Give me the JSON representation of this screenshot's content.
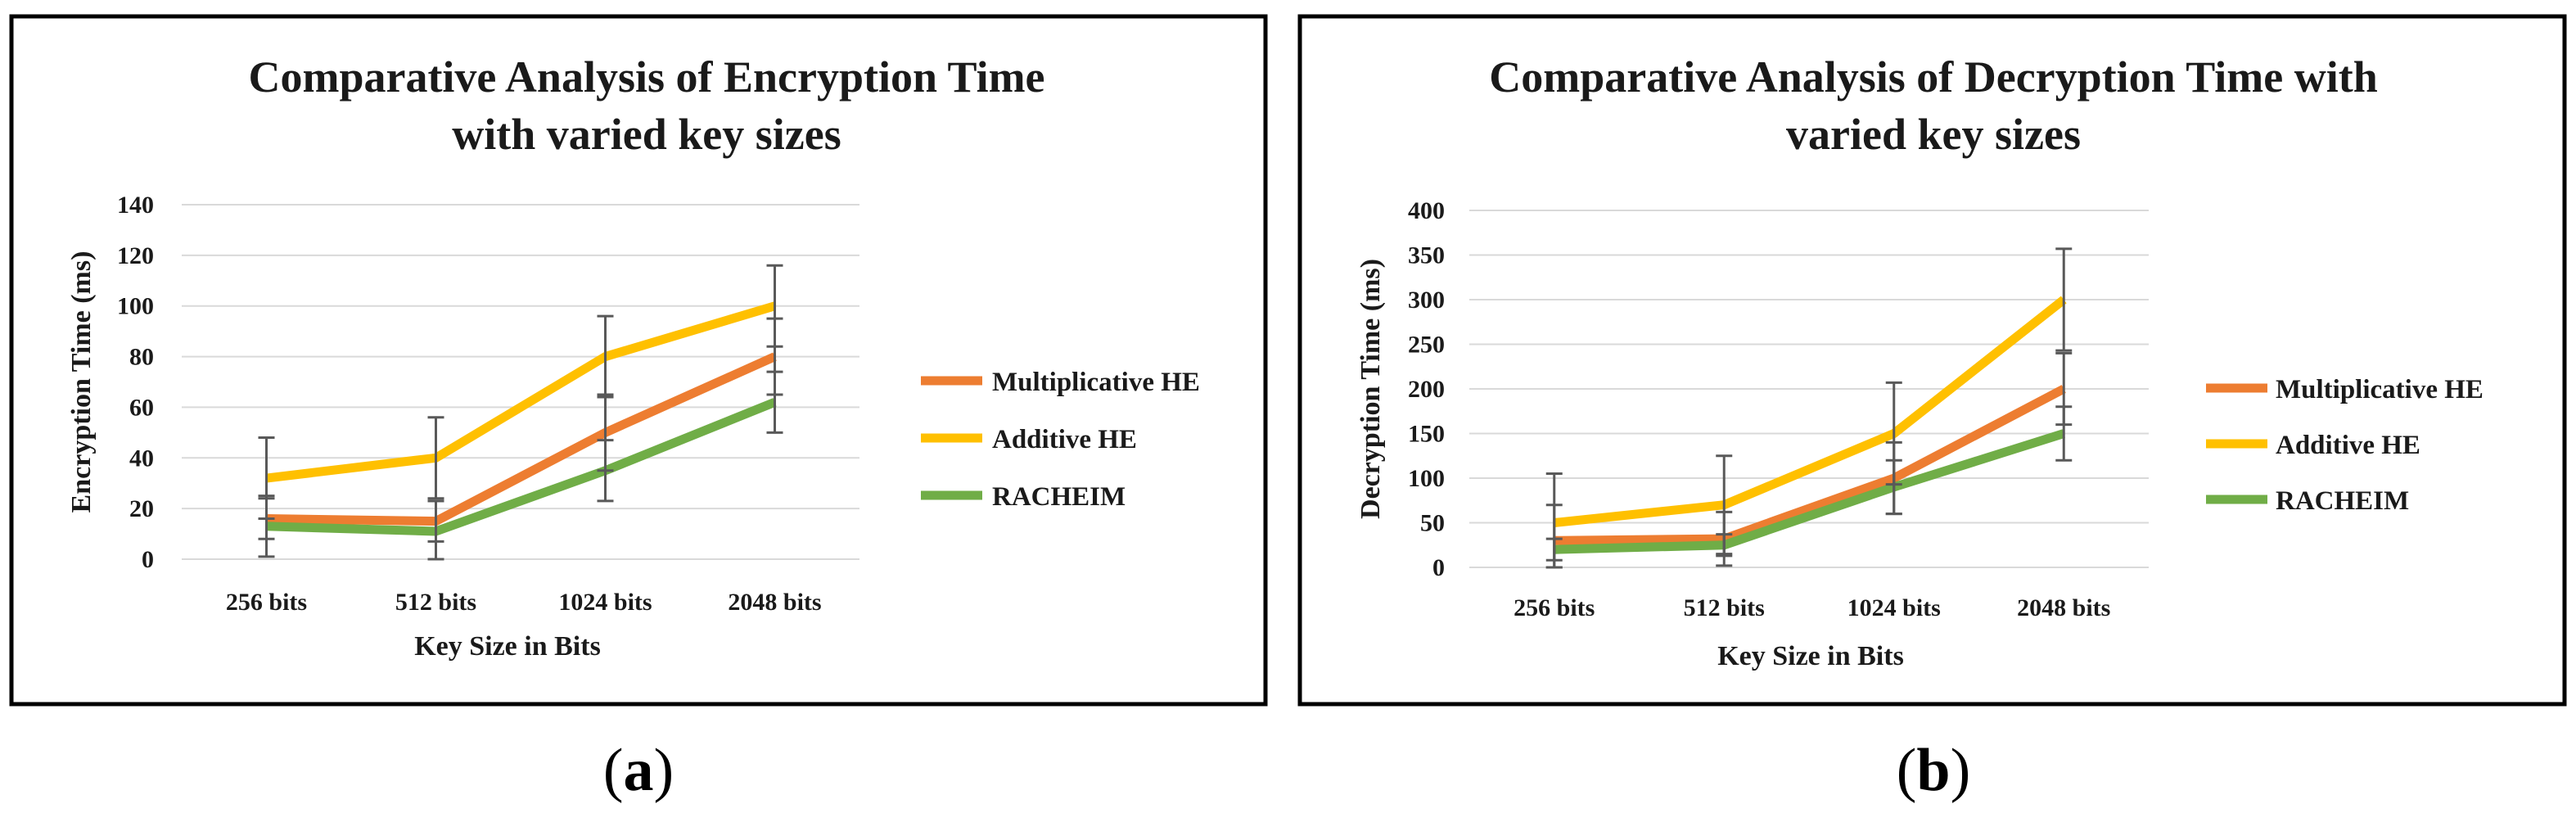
{
  "chart_data": [
    {
      "type": "line",
      "title": [
        "Comparative Analysis of Encryption Time",
        "with varied key sizes"
      ],
      "xlabel": "Key Size in Bits",
      "ylabel": "Encryption Time (ms)",
      "categories": [
        "256 bits",
        "512 bits",
        "1024 bits",
        "2048 bits"
      ],
      "ylim": [
        0,
        140
      ],
      "yticks": [
        0,
        20,
        40,
        60,
        80,
        100,
        120,
        140
      ],
      "grid": true,
      "legend_position": "right",
      "series": [
        {
          "name": "Multiplicative HE",
          "color": "#ED7D31",
          "values": [
            16,
            15,
            50,
            80
          ],
          "errors": [
            8,
            8,
            15,
            15
          ]
        },
        {
          "name": "Additive HE",
          "color": "#FFC000",
          "values": [
            32,
            40,
            80,
            100
          ],
          "errors": [
            16,
            16,
            16,
            16
          ]
        },
        {
          "name": "RACHEIM",
          "color": "#70AD47",
          "values": [
            13,
            11,
            35,
            62
          ],
          "errors": [
            12,
            12,
            12,
            12
          ]
        }
      ],
      "panel_label": [
        "(",
        "a",
        ")"
      ]
    },
    {
      "type": "line",
      "title": [
        "Comparative Analysis of Decryption Time with",
        "varied key sizes"
      ],
      "xlabel": "Key Size in Bits",
      "ylabel": "Decryption Time (ms)",
      "categories": [
        "256 bits",
        "512 bits",
        "1024 bits",
        "2048 bits"
      ],
      "ylim": [
        0,
        400
      ],
      "yticks": [
        0,
        50,
        100,
        150,
        200,
        250,
        300,
        350,
        400
      ],
      "grid": true,
      "legend_position": "right",
      "series": [
        {
          "name": "Multiplicative HE",
          "color": "#ED7D31",
          "values": [
            30,
            32,
            100,
            200
          ],
          "errors": [
            40,
            30,
            40,
            40
          ]
        },
        {
          "name": "Additive HE",
          "color": "#FFC000",
          "values": [
            50,
            70,
            150,
            300
          ],
          "errors": [
            55,
            55,
            57,
            57
          ]
        },
        {
          "name": "RACHEIM",
          "color": "#70AD47",
          "values": [
            20,
            25,
            90,
            150
          ],
          "errors": [
            12,
            12,
            30,
            30
          ]
        }
      ],
      "panel_label": [
        "(",
        "b",
        ")"
      ]
    }
  ]
}
